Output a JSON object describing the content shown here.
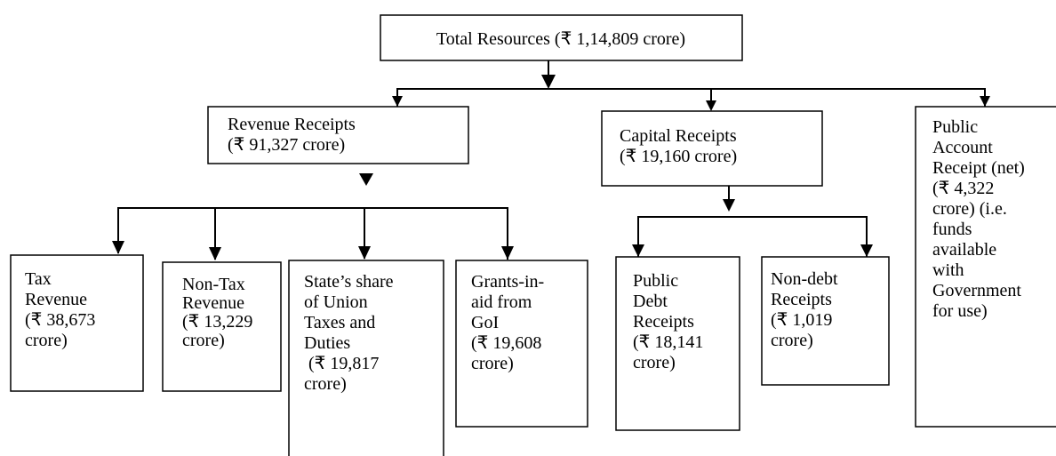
{
  "nodes": [
    {
      "lines": [
        "Total Resources (₹ 1,14,809 crore)"
      ]
    },
    {
      "lines": [
        "Revenue Receipts",
        "(₹ 91,327 crore)"
      ]
    },
    {
      "lines": [
        "Capital Receipts",
        "(₹ 19,160 crore)"
      ]
    },
    {
      "lines": [
        "Public",
        "Account",
        "Receipt (net)",
        "(₹ 4,322",
        "crore) (i.e.",
        "funds",
        "available",
        "with",
        "Government",
        "for use)"
      ]
    },
    {
      "lines": [
        "Tax",
        "Revenue",
        "(₹ 38,673",
        "crore)"
      ]
    },
    {
      "lines": [
        "Non-Tax",
        "Revenue",
        "(₹ 13,229",
        "crore)"
      ]
    },
    {
      "lines": [
        "State’s share",
        "of Union",
        "Taxes and",
        "Duties",
        " (₹ 19,817",
        "crore)"
      ]
    },
    {
      "lines": [
        "Grants-in-",
        "aid from",
        "GoI",
        "(₹ 19,608",
        "crore)"
      ]
    },
    {
      "lines": [
        "Public",
        "Debt",
        "Receipts",
        "(₹ 18,141",
        "crore)"
      ]
    },
    {
      "lines": [
        "Non-debt",
        "Receipts",
        "(₹ 1,019",
        "crore)"
      ]
    }
  ]
}
